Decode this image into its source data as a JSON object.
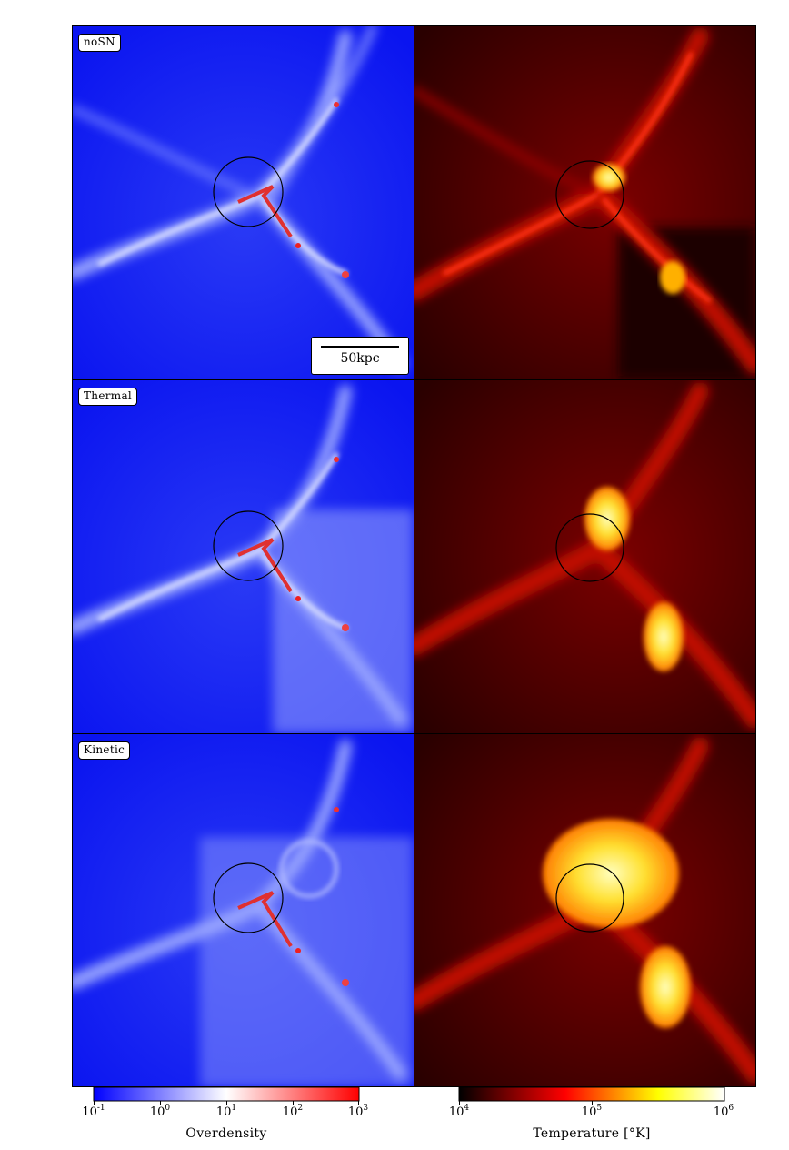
{
  "rows": [
    {
      "label": "noSN"
    },
    {
      "label": "Thermal"
    },
    {
      "label": "Kinetic"
    }
  ],
  "scalebar": {
    "label": "50kpc"
  },
  "colorbars": {
    "overdensity": {
      "title": "Overdensity",
      "ticks": [
        {
          "base": "10",
          "exp": "-1"
        },
        {
          "base": "10",
          "exp": "0"
        },
        {
          "base": "10",
          "exp": "1"
        },
        {
          "base": "10",
          "exp": "2"
        },
        {
          "base": "10",
          "exp": "3"
        }
      ],
      "colors": [
        "#0000ff",
        "#ffffff",
        "#ff0000"
      ]
    },
    "temperature": {
      "title": "Temperature [°K]",
      "ticks": [
        {
          "base": "10",
          "exp": "4"
        },
        {
          "base": "10",
          "exp": "5"
        },
        {
          "base": "10",
          "exp": "6"
        }
      ],
      "colors": [
        "#000000",
        "#ff0000",
        "#ffff00",
        "#ffffff"
      ]
    }
  }
}
